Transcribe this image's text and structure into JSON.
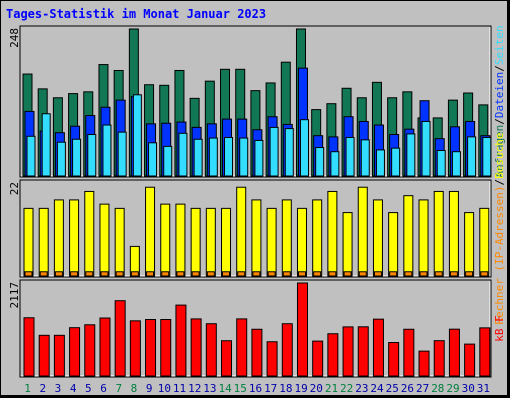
{
  "title": "Tages-Statistik im Monat Januar 2023",
  "colors": {
    "hits": "#117755",
    "files": "#0033ff",
    "pages": "#33ddff",
    "visits": "#ffff00",
    "sites": "#ff8800",
    "kbytes": "#ff0000",
    "weekend_label": "#008040",
    "weekday_label": "#0000aa"
  },
  "chart_data": [
    {
      "type": "bar",
      "panel": "top",
      "ymax_label": "248",
      "right_label_parts": [
        {
          "text": "Anfragen",
          "color": "#117755"
        },
        {
          "text": "/",
          "color": "#000000"
        },
        {
          "text": "Dateien",
          "color": "#0033ff"
        },
        {
          "text": "/",
          "color": "#000000"
        },
        {
          "text": "Seiten",
          "color": "#33ddff"
        }
      ],
      "ylim": [
        0,
        248
      ],
      "series": [
        {
          "name": "Anfragen",
          "values": [
            172,
            147,
            132,
            139,
            142,
            188,
            178,
            248,
            154,
            153,
            178,
            131,
            160,
            180,
            180,
            144,
            157,
            192,
            248,
            112,
            122,
            148,
            132,
            158,
            132,
            142,
            98,
            98,
            128,
            140,
            120
          ]
        },
        {
          "name": "Dateien",
          "values": [
            109,
            76,
            73,
            84,
            102,
            116,
            128,
            134,
            88,
            89,
            91,
            82,
            88,
            96,
            96,
            78,
            100,
            87,
            182,
            68,
            66,
            100,
            92,
            86,
            70,
            79,
            127,
            63,
            83,
            92,
            68
          ]
        },
        {
          "name": "Seiten",
          "values": [
            67,
            105,
            57,
            62,
            70,
            86,
            74,
            137,
            56,
            50,
            72,
            62,
            64,
            65,
            64,
            60,
            82,
            80,
            95,
            48,
            41,
            65,
            61,
            44,
            47,
            71,
            92,
            43,
            41,
            66,
            65
          ]
        }
      ]
    },
    {
      "type": "bar",
      "panel": "middle",
      "ymax_label": "22",
      "right_label_parts": [
        {
          "text": "Rechner (IP-Adressen)",
          "color": "#ff8800"
        },
        {
          "text": "/",
          "color": "#000000"
        },
        {
          "text": "Besuche",
          "color": "#ffff00"
        }
      ],
      "ylim": [
        0,
        22
      ],
      "series": [
        {
          "name": "Besuche",
          "values": [
            16,
            16,
            18,
            18,
            20,
            17,
            16,
            7,
            21,
            17,
            17,
            16,
            16,
            16,
            21,
            18,
            16,
            18,
            16,
            18,
            20,
            15,
            21,
            18,
            15,
            19,
            18,
            20,
            20,
            15,
            16
          ]
        },
        {
          "name": "Rechner (IP-Adressen)",
          "values": [
            1,
            1,
            1,
            1,
            1,
            1,
            1,
            1,
            1,
            1,
            1,
            1,
            1,
            1,
            1,
            1,
            1,
            1,
            1,
            1,
            1,
            1,
            1,
            1,
            1,
            1,
            1,
            1,
            1,
            1,
            1
          ]
        }
      ]
    },
    {
      "type": "bar",
      "panel": "bottom",
      "ymax_label": "2117",
      "right_label_parts": [
        {
          "text": "kB F",
          "color": "#ff0000"
        }
      ],
      "ylim": [
        0,
        2117
      ],
      "series": [
        {
          "name": "kB F",
          "values": [
            1326,
            926,
            926,
            1100,
            1166,
            1320,
            1714,
            1256,
            1286,
            1286,
            1614,
            1300,
            1190,
            803,
            1300,
            1064,
            780,
            1190,
            2117,
            794,
            962,
            1118,
            1120,
            1294,
            762,
            1064,
            566,
            804,
            1066,
            726,
            1096
          ]
        }
      ]
    }
  ],
  "x_labels": [
    "1",
    "2",
    "3",
    "4",
    "5",
    "6",
    "7",
    "8",
    "9",
    "10",
    "11",
    "12",
    "13",
    "14",
    "15",
    "16",
    "17",
    "18",
    "19",
    "20",
    "21",
    "22",
    "23",
    "24",
    "25",
    "26",
    "27",
    "28",
    "29",
    "30",
    "31"
  ],
  "weekend_days": [
    1,
    7,
    8,
    14,
    15,
    21,
    22,
    28,
    29
  ]
}
